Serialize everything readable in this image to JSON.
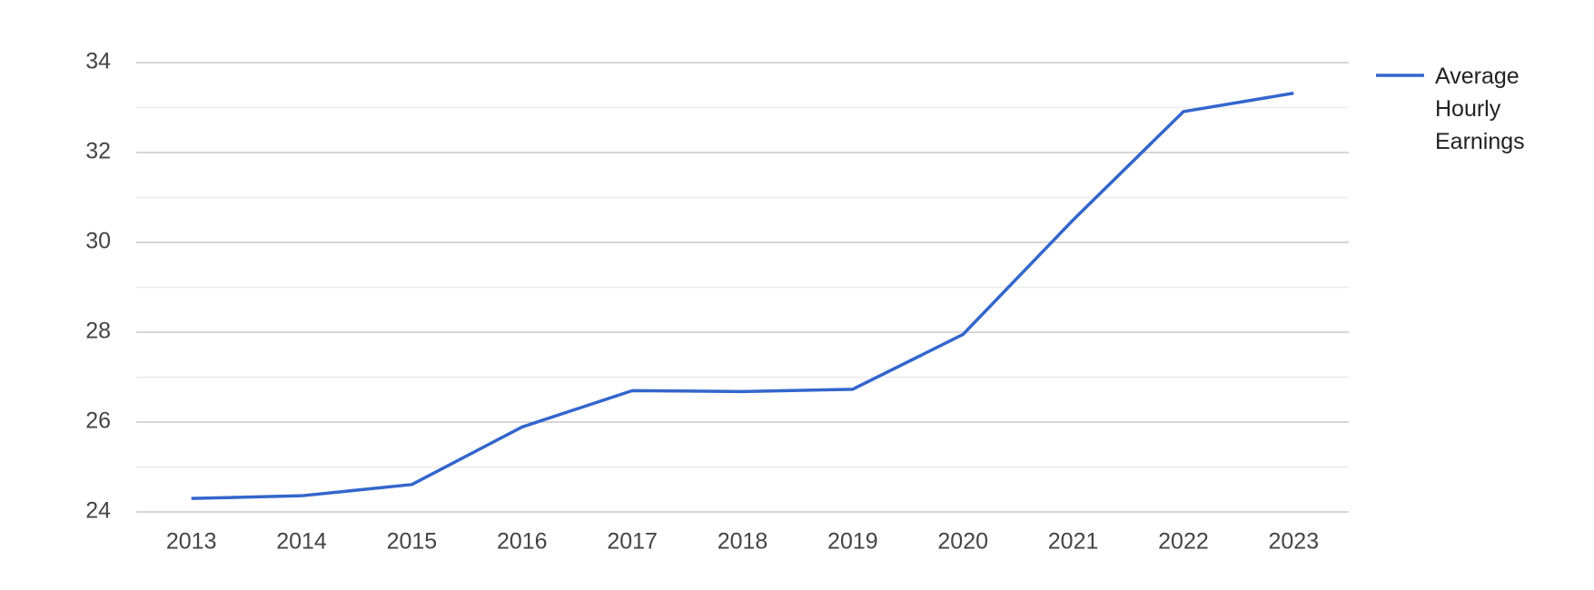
{
  "chart_data": {
    "type": "line",
    "x": [
      "2013",
      "2014",
      "2015",
      "2016",
      "2017",
      "2018",
      "2019",
      "2020",
      "2021",
      "2022",
      "2023"
    ],
    "series": [
      {
        "name": "Average Hourly Earnings",
        "color": "#3366cc",
        "values": [
          24.3,
          24.36,
          24.61,
          25.89,
          26.7,
          26.68,
          26.73,
          27.95,
          30.5,
          32.91,
          33.32
        ]
      }
    ],
    "ylim": [
      24,
      34
    ],
    "yticks": [
      24,
      26,
      28,
      30,
      32,
      34
    ],
    "grid": true,
    "legend": "right"
  }
}
